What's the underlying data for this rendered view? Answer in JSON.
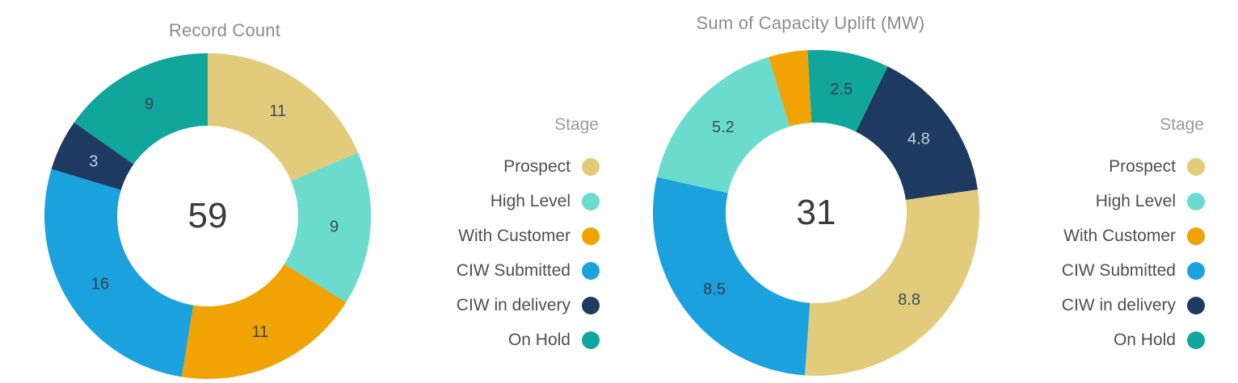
{
  "page": {
    "background": "#FFFFFF"
  },
  "stage_colors": {
    "Prospect": "#E2CC7B",
    "High Level": "#6BDBCE",
    "With Customer": "#F0A302",
    "CIW Submitted": "#1BA2DE",
    "CIW in delivery": "#1E3A61",
    "On Hold": "#10A69C"
  },
  "chart_data": [
    {
      "type": "donut",
      "title": "Record Count",
      "center_total": "59",
      "total": 59,
      "direction": "clockwise",
      "start_angle_deg": 0,
      "legend_title": "Stage",
      "legend_position": "right",
      "segments": [
        {
          "stage": "Prospect",
          "value": 11,
          "data_label": "11",
          "color": "#E2CC7B",
          "label_color": "#3A4A58"
        },
        {
          "stage": "High Level",
          "value": 9,
          "data_label": "9",
          "color": "#6BDBCE",
          "label_color": "#3A4A58"
        },
        {
          "stage": "With Customer",
          "value": 11,
          "data_label": "11",
          "color": "#F0A302",
          "label_color": "#3A4A58"
        },
        {
          "stage": "CIW Submitted",
          "value": 16,
          "data_label": "16",
          "color": "#1BA2DE",
          "label_color": "#2E3F4E"
        },
        {
          "stage": "CIW in delivery",
          "value": 3,
          "data_label": "3",
          "color": "#1E3A61",
          "label_color": "#C9D0DA"
        },
        {
          "stage": "On Hold",
          "value": 9,
          "data_label": "9",
          "color": "#10A69C",
          "label_color": "#2E3F4E"
        }
      ],
      "legend": [
        {
          "label": "Prospect",
          "color": "#E2CC7B"
        },
        {
          "label": "High Level",
          "color": "#6BDBCE"
        },
        {
          "label": "With Customer",
          "color": "#F0A302"
        },
        {
          "label": "CIW Submitted",
          "color": "#1BA2DE"
        },
        {
          "label": "CIW in delivery",
          "color": "#1E3A61"
        },
        {
          "label": "On Hold",
          "color": "#10A69C"
        }
      ]
    },
    {
      "type": "donut",
      "title": "Sum of Capacity Uplift (MW)",
      "center_total": "31",
      "total": 31,
      "direction": "clockwise",
      "start_angle_deg": -3,
      "legend_title": "Stage",
      "legend_position": "right",
      "segments": [
        {
          "stage": "On Hold",
          "value": 2.5,
          "data_label": "2.5",
          "color": "#10A69C",
          "label_color": "#2E3F4E"
        },
        {
          "stage": "CIW in delivery",
          "value": 4.8,
          "data_label": "4.8",
          "color": "#1E3A61",
          "label_color": "#C9D0DA"
        },
        {
          "stage": "Prospect",
          "value": 8.8,
          "data_label": "8.8",
          "color": "#E2CC7B",
          "label_color": "#3A4A58"
        },
        {
          "stage": "CIW Submitted",
          "value": 8.5,
          "data_label": "8.5",
          "color": "#1BA2DE",
          "label_color": "#2E3F4E"
        },
        {
          "stage": "High Level",
          "value": 5.2,
          "data_label": "5.2",
          "color": "#6BDBCE",
          "label_color": "#3A4A58"
        },
        {
          "stage": "With Customer",
          "value": 1.2,
          "data_label": "",
          "color": "#F0A302",
          "label_color": "#3A4A58"
        }
      ],
      "legend": [
        {
          "label": "Prospect",
          "color": "#E2CC7B"
        },
        {
          "label": "High Level",
          "color": "#6BDBCE"
        },
        {
          "label": "With Customer",
          "color": "#F0A302"
        },
        {
          "label": "CIW Submitted",
          "color": "#1BA2DE"
        },
        {
          "label": "CIW in delivery",
          "color": "#1E3A61"
        },
        {
          "label": "On Hold",
          "color": "#10A69C"
        }
      ]
    }
  ]
}
